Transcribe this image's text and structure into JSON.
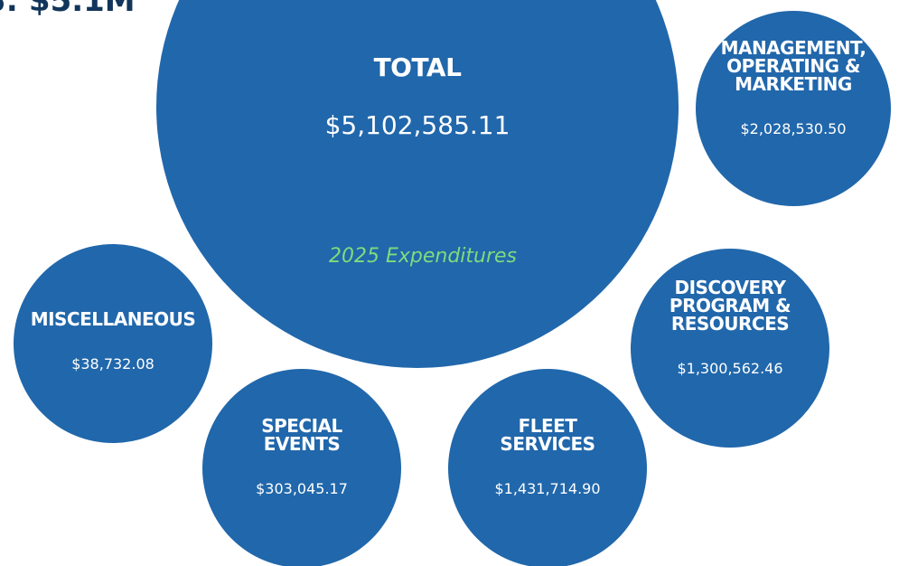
{
  "header": {
    "title": "S: $5.1M"
  },
  "total": {
    "label": "TOTAL",
    "amount": "$5,102,585.11",
    "caption": "2025 Expenditures"
  },
  "categories": [
    {
      "label": [
        "MANAGEMENT,",
        "OPERATING &",
        "MARKETING"
      ],
      "amount": "$2,028,530.50"
    },
    {
      "label": [
        "DISCOVERY",
        "PROGRAM &",
        "RESOURCES"
      ],
      "amount": "$1,300,562.46"
    },
    {
      "label": [
        "MISCELLANEOUS"
      ],
      "amount": "$38,732.08"
    },
    {
      "label": [
        "SPECIAL",
        "EVENTS"
      ],
      "amount": "$303,045.17"
    },
    {
      "label": [
        "FLEET",
        "SERVICES"
      ],
      "amount": "$1,431,714.90"
    }
  ]
}
